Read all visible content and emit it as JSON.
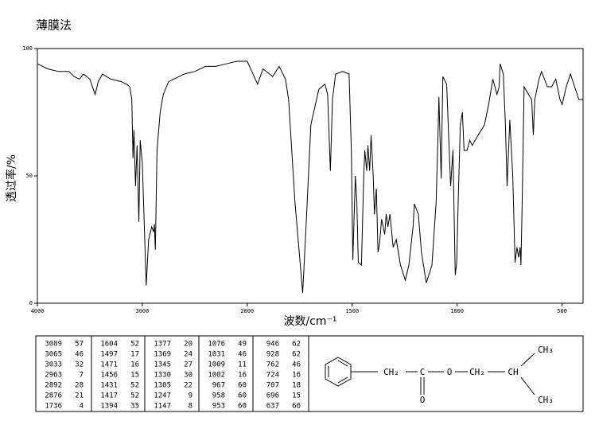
{
  "chart_data": {
    "type": "line",
    "title": "薄膜法",
    "xlabel": "波数/cm⁻¹",
    "ylabel": "透过率/%",
    "color": "#000000",
    "xlim": [
      4000,
      400
    ],
    "ylim": [
      0,
      100
    ],
    "x_scale_change_at": 2000,
    "xticks": [
      4000,
      3000,
      2000,
      1500,
      1000,
      500
    ],
    "yticks": [
      0,
      50,
      100
    ],
    "x": [
      4000,
      3900,
      3800,
      3700,
      3650,
      3600,
      3560,
      3500,
      3450,
      3420,
      3380,
      3300,
      3200,
      3150,
      3120,
      3100,
      3089,
      3080,
      3065,
      3050,
      3033,
      3020,
      3000,
      2963,
      2940,
      2910,
      2892,
      2885,
      2876,
      2860,
      2830,
      2800,
      2750,
      2700,
      2650,
      2600,
      2500,
      2400,
      2300,
      2200,
      2100,
      2000,
      1951,
      1925,
      1879,
      1848,
      1818,
      1803,
      1773,
      1736,
      1720,
      1697,
      1659,
      1630,
      1617,
      1604,
      1594,
      1579,
      1545,
      1515,
      1504,
      1497,
      1485,
      1478,
      1471,
      1456,
      1445,
      1440,
      1431,
      1425,
      1417,
      1410,
      1400,
      1394,
      1385,
      1377,
      1369,
      1360,
      1345,
      1338,
      1330,
      1320,
      1305,
      1290,
      1270,
      1247,
      1230,
      1210,
      1204,
      1185,
      1170,
      1147,
      1120,
      1100,
      1090,
      1087,
      1076,
      1068,
      1050,
      1031,
      1020,
      1009,
      1002,
      995,
      985,
      975,
      967,
      958,
      953,
      946,
      940,
      928,
      900,
      870,
      850,
      830,
      810,
      800,
      795,
      780,
      770,
      762,
      755,
      749,
      735,
      724,
      715,
      707,
      700,
      696,
      690,
      681,
      660,
      645,
      637,
      630,
      610,
      598,
      570,
      550,
      530,
      510,
      500,
      480,
      460,
      440,
      420,
      400
    ],
    "values": [
      94,
      92,
      91,
      91,
      89,
      88,
      90,
      88,
      82,
      87,
      90,
      88,
      87,
      86,
      85,
      80,
      57,
      68,
      46,
      62,
      32,
      64,
      55,
      7,
      25,
      30,
      28,
      31,
      21,
      60,
      75,
      82,
      87,
      88,
      89,
      90,
      91,
      93,
      93,
      94,
      95,
      95,
      86,
      92,
      89,
      93,
      88,
      80,
      40,
      4,
      30,
      70,
      84,
      86,
      82,
      52,
      80,
      90,
      91,
      90,
      60,
      17,
      50,
      40,
      16,
      15,
      50,
      60,
      52,
      62,
      52,
      66,
      50,
      35,
      45,
      20,
      24,
      33,
      27,
      35,
      30,
      35,
      22,
      25,
      15,
      9,
      15,
      30,
      39,
      35,
      20,
      8,
      15,
      40,
      70,
      81,
      49,
      89,
      86,
      46,
      60,
      11,
      16,
      40,
      70,
      75,
      60,
      60,
      60,
      62,
      64,
      62,
      66,
      70,
      78,
      88,
      82,
      85,
      94,
      90,
      70,
      46,
      60,
      72,
      50,
      16,
      22,
      18,
      22,
      15,
      40,
      85,
      82,
      80,
      66,
      80,
      88,
      91,
      85,
      85,
      88,
      80,
      78,
      85,
      90,
      85,
      80,
      80
    ]
  },
  "peak_table": [
    [
      [
        3089,
        57
      ],
      [
        3065,
        46
      ],
      [
        3033,
        32
      ],
      [
        2963,
        7
      ],
      [
        2892,
        28
      ],
      [
        2876,
        21
      ],
      [
        1736,
        4
      ]
    ],
    [
      [
        1604,
        52
      ],
      [
        1497,
        17
      ],
      [
        1471,
        16
      ],
      [
        1456,
        15
      ],
      [
        1431,
        52
      ],
      [
        1417,
        52
      ],
      [
        1394,
        35
      ]
    ],
    [
      [
        1377,
        20
      ],
      [
        1369,
        24
      ],
      [
        1345,
        27
      ],
      [
        1330,
        30
      ],
      [
        1305,
        22
      ],
      [
        1247,
        9
      ],
      [
        1147,
        8
      ]
    ],
    [
      [
        1076,
        49
      ],
      [
        1031,
        46
      ],
      [
        1009,
        11
      ],
      [
        1002,
        16
      ],
      [
        967,
        60
      ],
      [
        958,
        60
      ],
      [
        953,
        60
      ]
    ],
    [
      [
        946,
        62
      ],
      [
        928,
        62
      ],
      [
        762,
        46
      ],
      [
        724,
        16
      ],
      [
        707,
        18
      ],
      [
        696,
        15
      ],
      [
        637,
        66
      ]
    ]
  ],
  "structure": {
    "ch2_a": "CH₂",
    "c": "C",
    "o_carbonyl": "O",
    "o_ester": "O",
    "ch2_b": "CH₂",
    "ch": "CH",
    "ch3_top": "CH₃",
    "ch3_bottom": "CH₃"
  }
}
